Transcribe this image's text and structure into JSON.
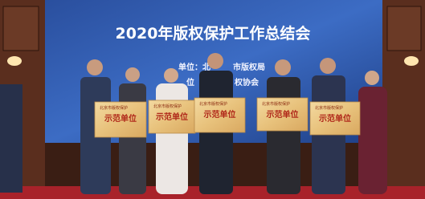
{
  "banner": {
    "title": "2020年版权保护工作总结会",
    "lines": [
      [
        "单位：北",
        "市版权局"
      ],
      [
        "位",
        "权协会"
      ]
    ]
  },
  "plaques": [
    {
      "header": "北京市版权保护",
      "main": "示范单位"
    },
    {
      "header": "北京市版权保护",
      "main": "示范单位"
    },
    {
      "header": "北京市版权保护",
      "main": "示范单位"
    },
    {
      "header": "北京市版权保护",
      "main": "示范单位"
    },
    {
      "header": "北京市版权保护",
      "main": "示范单位"
    }
  ]
}
